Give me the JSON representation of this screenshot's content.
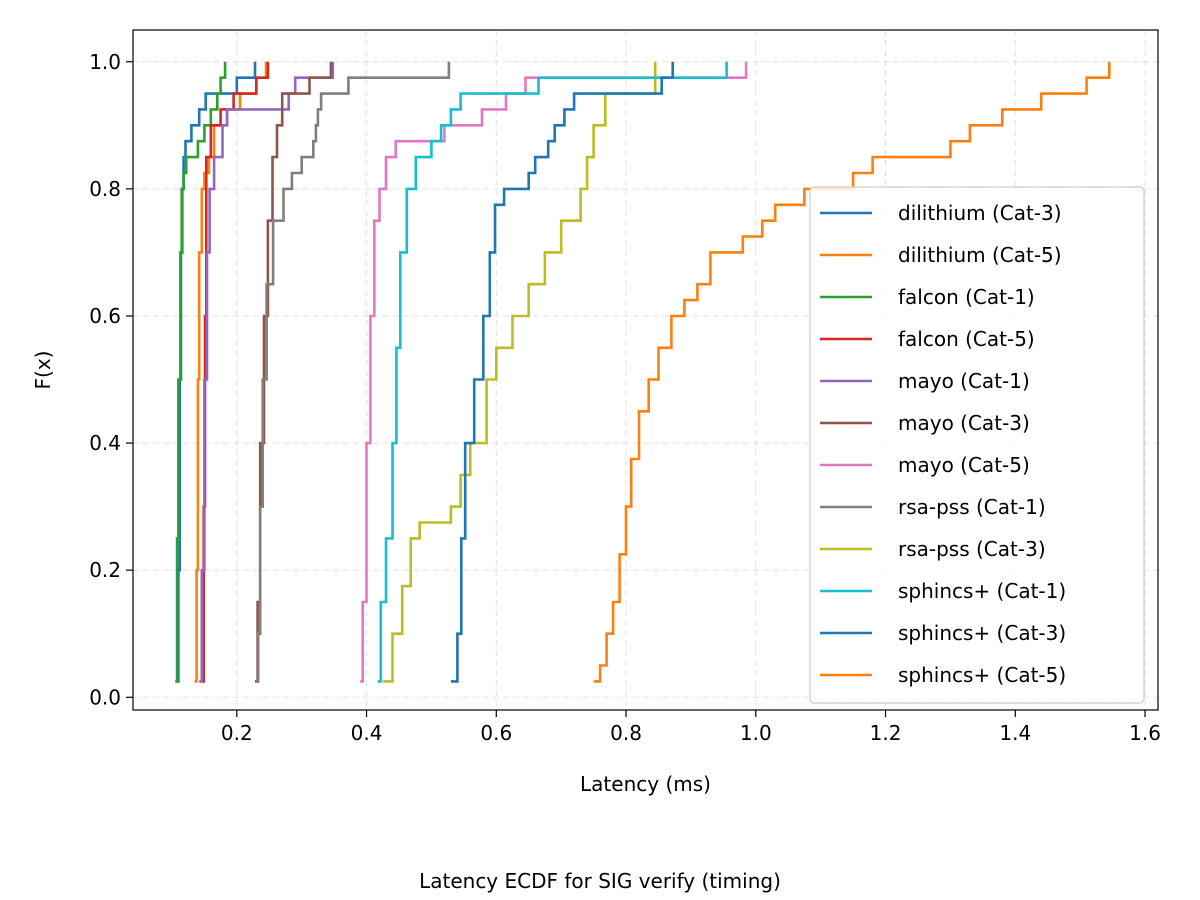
{
  "chart_data": {
    "type": "line",
    "step": true,
    "title": "",
    "caption": "Latency ECDF for SIG verify (timing)",
    "xlabel": "Latency (ms)",
    "ylabel": "F(x)",
    "xlim": [
      0.04,
      1.62
    ],
    "ylim": [
      -0.02,
      1.05
    ],
    "xticks": [
      0.2,
      0.4,
      0.6,
      0.8,
      1.0,
      1.2,
      1.4,
      1.6
    ],
    "xtick_labels": [
      "0.2",
      "0.4",
      "0.6",
      "0.8",
      "1.0",
      "1.2",
      "1.4",
      "1.6"
    ],
    "yticks": [
      0.0,
      0.2,
      0.4,
      0.6,
      0.8,
      1.0
    ],
    "ytick_labels": [
      "0.0",
      "0.2",
      "0.4",
      "0.6",
      "0.8",
      "1.0"
    ],
    "grid": true,
    "legend_position": "lower-right",
    "series": [
      {
        "name": "dilithium (Cat-3)",
        "color": "#1f77b4",
        "points": [
          [
            0.108,
            0.025
          ],
          [
            0.11,
            0.2
          ],
          [
            0.112,
            0.5
          ],
          [
            0.114,
            0.7
          ],
          [
            0.116,
            0.8
          ],
          [
            0.118,
            0.85
          ],
          [
            0.121,
            0.875
          ],
          [
            0.13,
            0.9
          ],
          [
            0.142,
            0.925
          ],
          [
            0.152,
            0.95
          ],
          [
            0.2,
            0.975
          ],
          [
            0.228,
            1.0
          ]
        ]
      },
      {
        "name": "dilithium (Cat-5)",
        "color": "#ff7f0e",
        "points": [
          [
            0.135,
            0.025
          ],
          [
            0.138,
            0.2
          ],
          [
            0.14,
            0.5
          ],
          [
            0.142,
            0.7
          ],
          [
            0.146,
            0.8
          ],
          [
            0.15,
            0.825
          ],
          [
            0.157,
            0.85
          ],
          [
            0.165,
            0.9
          ],
          [
            0.185,
            0.925
          ],
          [
            0.205,
            0.95
          ],
          [
            0.23,
            0.975
          ],
          [
            0.245,
            1.0
          ]
        ]
      },
      {
        "name": "falcon (Cat-1)",
        "color": "#2ca02c",
        "points": [
          [
            0.105,
            0.025
          ],
          [
            0.108,
            0.25
          ],
          [
            0.11,
            0.5
          ],
          [
            0.113,
            0.7
          ],
          [
            0.115,
            0.8
          ],
          [
            0.118,
            0.825
          ],
          [
            0.122,
            0.85
          ],
          [
            0.14,
            0.875
          ],
          [
            0.15,
            0.9
          ],
          [
            0.16,
            0.925
          ],
          [
            0.17,
            0.95
          ],
          [
            0.175,
            0.975
          ],
          [
            0.182,
            1.0
          ]
        ]
      },
      {
        "name": "falcon (Cat-5)",
        "color": "#d62728",
        "points": [
          [
            0.147,
            0.025
          ],
          [
            0.149,
            0.3
          ],
          [
            0.151,
            0.6
          ],
          [
            0.153,
            0.85
          ],
          [
            0.16,
            0.9
          ],
          [
            0.175,
            0.925
          ],
          [
            0.195,
            0.95
          ],
          [
            0.23,
            0.975
          ],
          [
            0.248,
            1.0
          ]
        ]
      },
      {
        "name": "mayo (Cat-1)",
        "color": "#9467bd",
        "points": [
          [
            0.142,
            0.025
          ],
          [
            0.146,
            0.2
          ],
          [
            0.15,
            0.5
          ],
          [
            0.154,
            0.7
          ],
          [
            0.158,
            0.8
          ],
          [
            0.165,
            0.85
          ],
          [
            0.178,
            0.9
          ],
          [
            0.185,
            0.925
          ],
          [
            0.28,
            0.95
          ],
          [
            0.29,
            0.975
          ],
          [
            0.348,
            1.0
          ]
        ]
      },
      {
        "name": "mayo (Cat-3)",
        "color": "#8c564b",
        "points": [
          [
            0.228,
            0.025
          ],
          [
            0.232,
            0.15
          ],
          [
            0.236,
            0.4
          ],
          [
            0.242,
            0.6
          ],
          [
            0.248,
            0.75
          ],
          [
            0.255,
            0.85
          ],
          [
            0.262,
            0.9
          ],
          [
            0.27,
            0.95
          ],
          [
            0.312,
            0.975
          ],
          [
            0.345,
            1.0
          ]
        ]
      },
      {
        "name": "mayo (Cat-5)",
        "color": "#e377c2",
        "points": [
          [
            0.39,
            0.025
          ],
          [
            0.394,
            0.15
          ],
          [
            0.4,
            0.4
          ],
          [
            0.406,
            0.6
          ],
          [
            0.412,
            0.75
          ],
          [
            0.42,
            0.8
          ],
          [
            0.43,
            0.85
          ],
          [
            0.445,
            0.875
          ],
          [
            0.52,
            0.9
          ],
          [
            0.578,
            0.925
          ],
          [
            0.615,
            0.95
          ],
          [
            0.645,
            0.975
          ],
          [
            0.985,
            1.0
          ]
        ]
      },
      {
        "name": "rsa-pss (Cat-1)",
        "color": "#7f7f7f",
        "points": [
          [
            0.23,
            0.025
          ],
          [
            0.233,
            0.1
          ],
          [
            0.236,
            0.3
          ],
          [
            0.24,
            0.5
          ],
          [
            0.246,
            0.65
          ],
          [
            0.256,
            0.75
          ],
          [
            0.272,
            0.8
          ],
          [
            0.285,
            0.825
          ],
          [
            0.3,
            0.85
          ],
          [
            0.318,
            0.875
          ],
          [
            0.322,
            0.9
          ],
          [
            0.325,
            0.925
          ],
          [
            0.33,
            0.95
          ],
          [
            0.372,
            0.975
          ],
          [
            0.527,
            1.0
          ]
        ]
      },
      {
        "name": "rsa-pss (Cat-3)",
        "color": "#bcbd22",
        "points": [
          [
            0.425,
            0.025
          ],
          [
            0.44,
            0.1
          ],
          [
            0.455,
            0.175
          ],
          [
            0.468,
            0.25
          ],
          [
            0.482,
            0.275
          ],
          [
            0.53,
            0.3
          ],
          [
            0.545,
            0.35
          ],
          [
            0.56,
            0.4
          ],
          [
            0.585,
            0.5
          ],
          [
            0.6,
            0.55
          ],
          [
            0.625,
            0.6
          ],
          [
            0.65,
            0.65
          ],
          [
            0.675,
            0.7
          ],
          [
            0.7,
            0.75
          ],
          [
            0.73,
            0.8
          ],
          [
            0.74,
            0.85
          ],
          [
            0.75,
            0.9
          ],
          [
            0.768,
            0.95
          ],
          [
            0.845,
            1.0
          ]
        ]
      },
      {
        "name": "sphincs+ (Cat-1)",
        "color": "#17becf",
        "points": [
          [
            0.417,
            0.025
          ],
          [
            0.422,
            0.15
          ],
          [
            0.43,
            0.25
          ],
          [
            0.44,
            0.4
          ],
          [
            0.446,
            0.55
          ],
          [
            0.452,
            0.7
          ],
          [
            0.462,
            0.8
          ],
          [
            0.476,
            0.85
          ],
          [
            0.5,
            0.875
          ],
          [
            0.515,
            0.9
          ],
          [
            0.53,
            0.925
          ],
          [
            0.545,
            0.95
          ],
          [
            0.665,
            0.975
          ],
          [
            0.955,
            1.0
          ]
        ]
      },
      {
        "name": "sphincs+ (Cat-3)",
        "color": "#1f77b4",
        "points": [
          [
            0.53,
            0.025
          ],
          [
            0.54,
            0.1
          ],
          [
            0.546,
            0.25
          ],
          [
            0.552,
            0.4
          ],
          [
            0.566,
            0.5
          ],
          [
            0.58,
            0.6
          ],
          [
            0.59,
            0.7
          ],
          [
            0.598,
            0.775
          ],
          [
            0.612,
            0.8
          ],
          [
            0.65,
            0.825
          ],
          [
            0.66,
            0.85
          ],
          [
            0.68,
            0.875
          ],
          [
            0.69,
            0.9
          ],
          [
            0.705,
            0.925
          ],
          [
            0.72,
            0.95
          ],
          [
            0.855,
            0.975
          ],
          [
            0.872,
            1.0
          ]
        ]
      },
      {
        "name": "sphincs+ (Cat-5)",
        "color": "#ff7f0e",
        "points": [
          [
            0.75,
            0.025
          ],
          [
            0.76,
            0.05
          ],
          [
            0.77,
            0.1
          ],
          [
            0.78,
            0.15
          ],
          [
            0.79,
            0.225
          ],
          [
            0.8,
            0.3
          ],
          [
            0.808,
            0.375
          ],
          [
            0.82,
            0.45
          ],
          [
            0.835,
            0.5
          ],
          [
            0.85,
            0.55
          ],
          [
            0.87,
            0.6
          ],
          [
            0.89,
            0.625
          ],
          [
            0.91,
            0.65
          ],
          [
            0.93,
            0.7
          ],
          [
            0.98,
            0.725
          ],
          [
            1.01,
            0.75
          ],
          [
            1.03,
            0.775
          ],
          [
            1.075,
            0.8
          ],
          [
            1.15,
            0.825
          ],
          [
            1.18,
            0.85
          ],
          [
            1.3,
            0.875
          ],
          [
            1.33,
            0.9
          ],
          [
            1.38,
            0.925
          ],
          [
            1.44,
            0.95
          ],
          [
            1.51,
            0.975
          ],
          [
            1.545,
            1.0
          ]
        ]
      }
    ]
  }
}
